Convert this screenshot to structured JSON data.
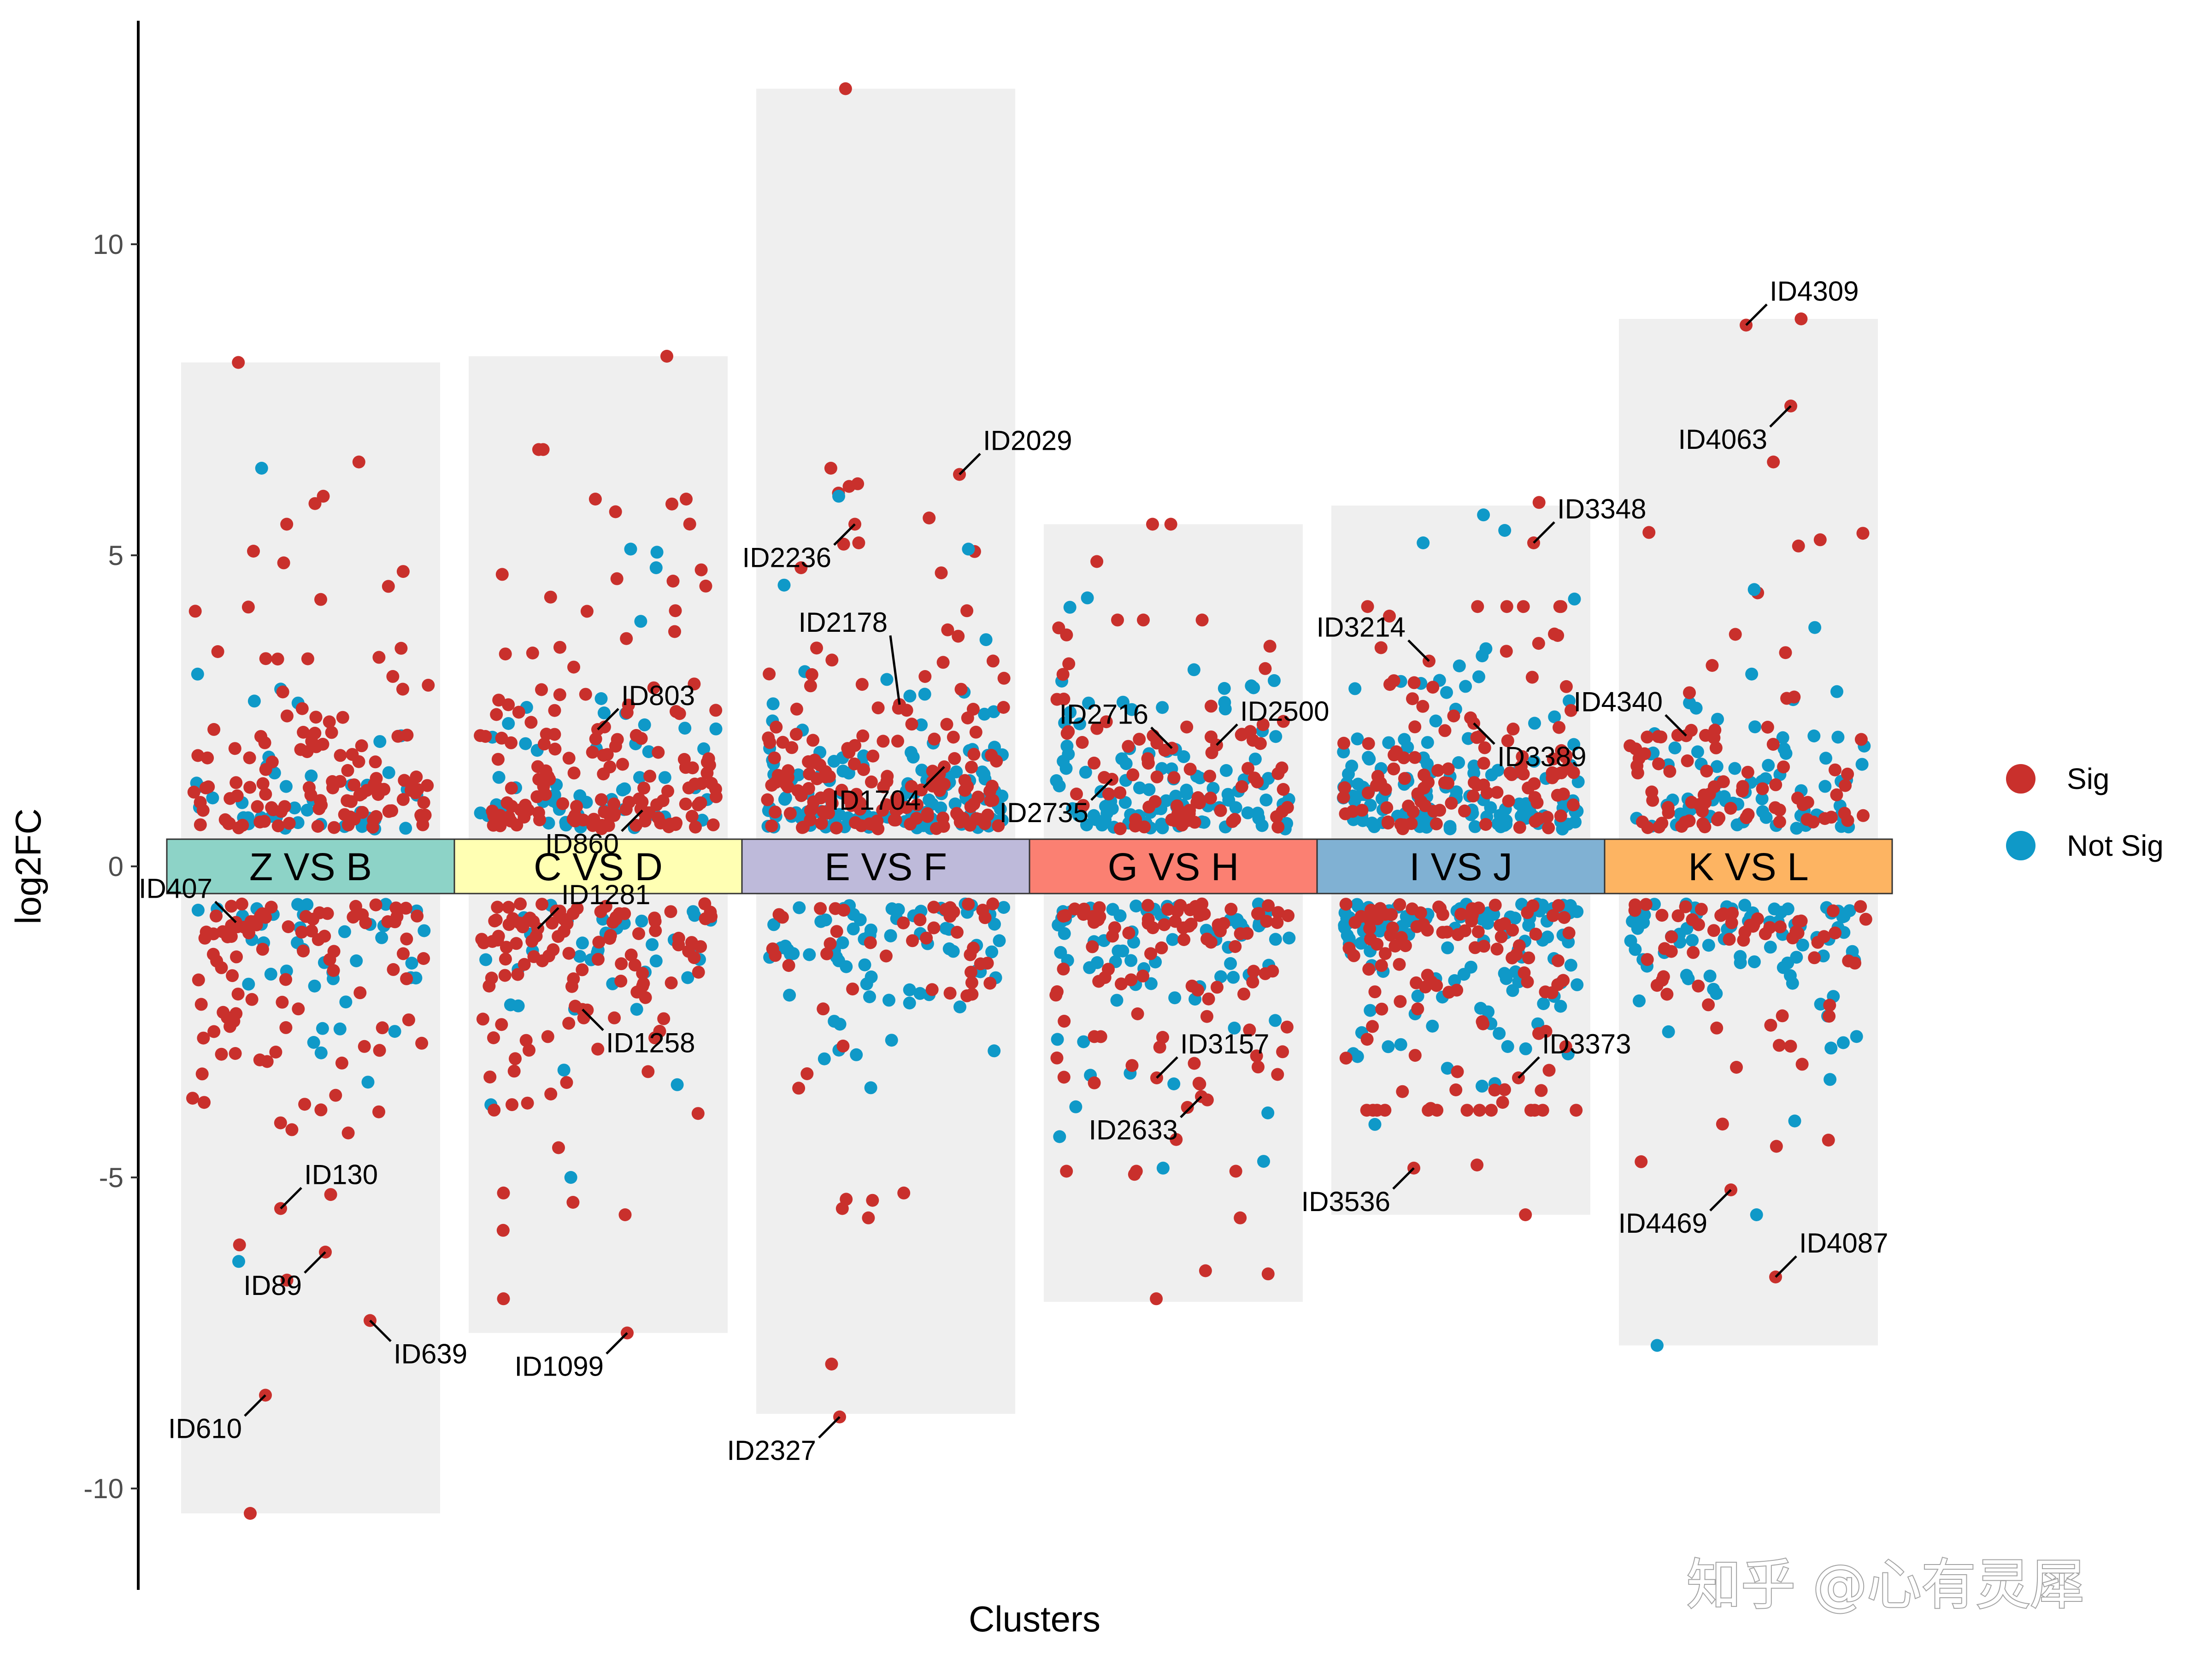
{
  "chart_data": {
    "type": "scatter",
    "xlabel": "Clusters",
    "ylabel": "log2FC",
    "ylim": [
      -11.5,
      13.5
    ],
    "yticks": [
      "10",
      "5",
      "0",
      "-5",
      "-10"
    ],
    "ytick_values": [
      10,
      5,
      0,
      -5,
      -10
    ],
    "legend": {
      "placement": "right",
      "entries": [
        {
          "label": "Sig",
          "color": "#c9302c"
        },
        {
          "label": "Not Sig",
          "color": "#0f99c8"
        }
      ]
    },
    "groups": [
      {
        "label": "Z VS B",
        "color": "#8dd3c7",
        "max": 8.1,
        "min": -10.4,
        "n_pos_sig": 120,
        "n_pos_ns": 45,
        "n_neg_sig": 95,
        "n_neg_ns": 40
      },
      {
        "label": "C VS D",
        "color": "#ffffb3",
        "max": 8.2,
        "min": -7.5,
        "n_pos_sig": 140,
        "n_pos_ns": 50,
        "n_neg_sig": 110,
        "n_neg_ns": 35
      },
      {
        "label": "E VS F",
        "color": "#bebada",
        "max": 12.5,
        "min": -8.8,
        "n_pos_sig": 150,
        "n_pos_ns": 120,
        "n_neg_sig": 45,
        "n_neg_ns": 70
      },
      {
        "label": "G VS H",
        "color": "#fb8072",
        "max": 5.5,
        "min": -7.0,
        "n_pos_sig": 80,
        "n_pos_ns": 100,
        "n_neg_sig": 95,
        "n_neg_ns": 75
      },
      {
        "label": "I VS J",
        "color": "#80b1d3",
        "max": 5.8,
        "min": -5.6,
        "n_pos_sig": 110,
        "n_pos_ns": 130,
        "n_neg_sig": 110,
        "n_neg_ns": 120
      },
      {
        "label": "K VS L",
        "color": "#fdb462",
        "max": 8.8,
        "min": -7.7,
        "n_pos_sig": 80,
        "n_pos_ns": 70,
        "n_neg_sig": 60,
        "n_neg_ns": 80
      }
    ],
    "outliers": [
      {
        "g": 0,
        "y": 8.1,
        "sig": true
      },
      {
        "g": 0,
        "y": 6.4,
        "sig": false
      },
      {
        "g": 0,
        "y": 6.5,
        "sig": true
      },
      {
        "g": 0,
        "y": 5.95,
        "sig": true
      },
      {
        "g": 0,
        "y": 5.5,
        "sig": true
      },
      {
        "g": 0,
        "y": -10.4,
        "sig": true
      },
      {
        "g": 0,
        "y": -6.35,
        "sig": false
      },
      {
        "g": 0,
        "y": -6.65,
        "sig": true
      },
      {
        "g": 1,
        "y": 8.2,
        "sig": true
      },
      {
        "g": 1,
        "y": 6.7,
        "sig": true
      },
      {
        "g": 1,
        "y": 6.7,
        "sig": true
      },
      {
        "g": 1,
        "y": 5.7,
        "sig": true
      },
      {
        "g": 1,
        "y": 5.1,
        "sig": false
      },
      {
        "g": 1,
        "y": 5.05,
        "sig": false
      },
      {
        "g": 1,
        "y": 4.8,
        "sig": false
      },
      {
        "g": 1,
        "y": -5.0,
        "sig": false
      },
      {
        "g": 1,
        "y": -5.85,
        "sig": true
      },
      {
        "g": 1,
        "y": -6.95,
        "sig": true
      },
      {
        "g": 1,
        "y": -5.6,
        "sig": true
      },
      {
        "g": 1,
        "y": -5.4,
        "sig": true
      },
      {
        "g": 2,
        "y": 12.5,
        "sig": true
      },
      {
        "g": 2,
        "y": 6.4,
        "sig": true
      },
      {
        "g": 2,
        "y": 6.15,
        "sig": true
      },
      {
        "g": 2,
        "y": 6.0,
        "sig": true
      },
      {
        "g": 2,
        "y": 5.95,
        "sig": false
      },
      {
        "g": 2,
        "y": 5.6,
        "sig": true
      },
      {
        "g": 2,
        "y": 5.2,
        "sig": true
      },
      {
        "g": 2,
        "y": 5.1,
        "sig": false
      },
      {
        "g": 2,
        "y": 4.8,
        "sig": true
      },
      {
        "g": 2,
        "y": -5.35,
        "sig": true
      },
      {
        "g": 2,
        "y": -5.5,
        "sig": true
      },
      {
        "g": 2,
        "y": -5.65,
        "sig": true
      },
      {
        "g": 2,
        "y": -5.25,
        "sig": true
      },
      {
        "g": 2,
        "y": -8.0,
        "sig": true
      },
      {
        "g": 3,
        "y": 5.5,
        "sig": true
      },
      {
        "g": 3,
        "y": 5.5,
        "sig": true
      },
      {
        "g": 3,
        "y": 4.9,
        "sig": true
      },
      {
        "g": 3,
        "y": -4.85,
        "sig": false
      },
      {
        "g": 3,
        "y": -4.95,
        "sig": true
      },
      {
        "g": 3,
        "y": -5.65,
        "sig": true
      },
      {
        "g": 3,
        "y": -6.55,
        "sig": true
      },
      {
        "g": 3,
        "y": -6.95,
        "sig": true
      },
      {
        "g": 3,
        "y": -6.5,
        "sig": true
      },
      {
        "g": 4,
        "y": 5.85,
        "sig": true
      },
      {
        "g": 4,
        "y": 5.65,
        "sig": false
      },
      {
        "g": 4,
        "y": 5.4,
        "sig": false
      },
      {
        "g": 4,
        "y": 5.2,
        "sig": false
      },
      {
        "g": 4,
        "y": -5.6,
        "sig": true
      },
      {
        "g": 4,
        "y": -4.8,
        "sig": true
      },
      {
        "g": 5,
        "y": 8.8,
        "sig": true
      },
      {
        "g": 5,
        "y": 6.5,
        "sig": true
      },
      {
        "g": 5,
        "y": 5.25,
        "sig": true
      },
      {
        "g": 5,
        "y": 5.15,
        "sig": true
      },
      {
        "g": 5,
        "y": 4.45,
        "sig": false
      },
      {
        "g": 5,
        "y": -7.7,
        "sig": false
      },
      {
        "g": 5,
        "y": -5.6,
        "sig": false
      },
      {
        "g": 5,
        "y": -4.5,
        "sig": true
      },
      {
        "g": 5,
        "y": -4.4,
        "sig": true
      }
    ],
    "labels": [
      {
        "text": "ID407",
        "g": 0,
        "y": -0.9,
        "dir": "up-left"
      },
      {
        "text": "ID130",
        "g": 0,
        "y": -5.5,
        "dir": "up-right"
      },
      {
        "text": "ID89",
        "g": 0,
        "y": -6.2,
        "dir": "down-left"
      },
      {
        "text": "ID639",
        "g": 0,
        "y": -7.3,
        "dir": "down-right"
      },
      {
        "text": "ID610",
        "g": 0,
        "y": -8.5,
        "dir": "down-left"
      },
      {
        "text": "ID803",
        "g": 1,
        "y": 2.2,
        "dir": "up-right"
      },
      {
        "text": "ID860",
        "g": 1,
        "y": 0.9,
        "dir": "down-left"
      },
      {
        "text": "ID1281",
        "g": 1,
        "y": -1.0,
        "dir": "up-right"
      },
      {
        "text": "ID1258",
        "g": 1,
        "y": -2.3,
        "dir": "down-right"
      },
      {
        "text": "ID1099",
        "g": 1,
        "y": -7.5,
        "dir": "down-left"
      },
      {
        "text": "ID2029",
        "g": 2,
        "y": 6.3,
        "dir": "up-right"
      },
      {
        "text": "ID2236",
        "g": 2,
        "y": 5.5,
        "dir": "down-left"
      },
      {
        "text": "ID2178",
        "g": 2,
        "y": 2.6,
        "dir": "up-left-long"
      },
      {
        "text": "ID1704",
        "g": 2,
        "y": 1.6,
        "dir": "down-left"
      },
      {
        "text": "ID2327",
        "g": 2,
        "y": -8.85,
        "dir": "down-left"
      },
      {
        "text": "ID2716",
        "g": 3,
        "y": 1.9,
        "dir": "up-left"
      },
      {
        "text": "ID2500",
        "g": 3,
        "y": 1.95,
        "dir": "up-right"
      },
      {
        "text": "ID2735",
        "g": 3,
        "y": 1.4,
        "dir": "down-left"
      },
      {
        "text": "ID3157",
        "g": 3,
        "y": -3.4,
        "dir": "up-right"
      },
      {
        "text": "ID2633",
        "g": 3,
        "y": -3.7,
        "dir": "down-left"
      },
      {
        "text": "ID3348",
        "g": 4,
        "y": 5.2,
        "dir": "up-right"
      },
      {
        "text": "ID3214",
        "g": 4,
        "y": 3.3,
        "dir": "up-left"
      },
      {
        "text": "ID3389",
        "g": 4,
        "y": 2.3,
        "dir": "down-right"
      },
      {
        "text": "ID3373",
        "g": 4,
        "y": -3.4,
        "dir": "up-right"
      },
      {
        "text": "ID3536",
        "g": 4,
        "y": -4.85,
        "dir": "down-left"
      },
      {
        "text": "ID4309",
        "g": 5,
        "y": 8.7,
        "dir": "up-right"
      },
      {
        "text": "ID4063",
        "g": 5,
        "y": 7.4,
        "dir": "down-left"
      },
      {
        "text": "ID4340",
        "g": 5,
        "y": 2.1,
        "dir": "up-left"
      },
      {
        "text": "ID4469",
        "g": 5,
        "y": -5.2,
        "dir": "down-left"
      },
      {
        "text": "ID4087",
        "g": 5,
        "y": -6.6,
        "dir": "up-right"
      }
    ]
  },
  "watermark": "知乎 @心有灵犀"
}
